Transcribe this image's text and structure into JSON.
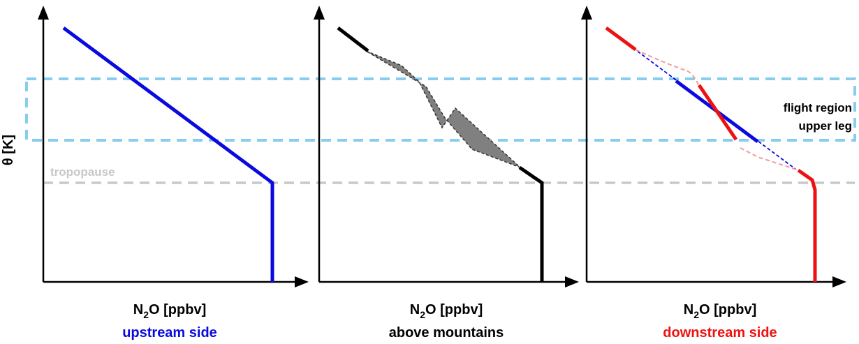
{
  "y_axis": {
    "label": "θ [K]"
  },
  "annotations": {
    "tropopause": "tropopause",
    "flight_region_line1": "flight region",
    "flight_region_line2": "upper leg"
  },
  "panels": [
    {
      "xlabel_main": "N",
      "xlabel_sub": "2",
      "xlabel_rest": "O [ppbv]",
      "title": "upstream side",
      "title_color": "#0a0adf"
    },
    {
      "xlabel_main": "N",
      "xlabel_sub": "2",
      "xlabel_rest": "O [ppbv]",
      "title": "above mountains",
      "title_color": "#000000"
    },
    {
      "xlabel_main": "N",
      "xlabel_sub": "2",
      "xlabel_rest": "O [ppbv]",
      "title": "downstream side",
      "title_color": "#ee1111"
    }
  ],
  "colors": {
    "upstream": "#0a0adf",
    "above": "#000000",
    "downstream": "#ee1111",
    "downstream_light": "#f29a9a",
    "uncertainty_fill": "#808080",
    "tropopause": "#c8c8c8",
    "flight_region": "#87cdf0"
  }
}
